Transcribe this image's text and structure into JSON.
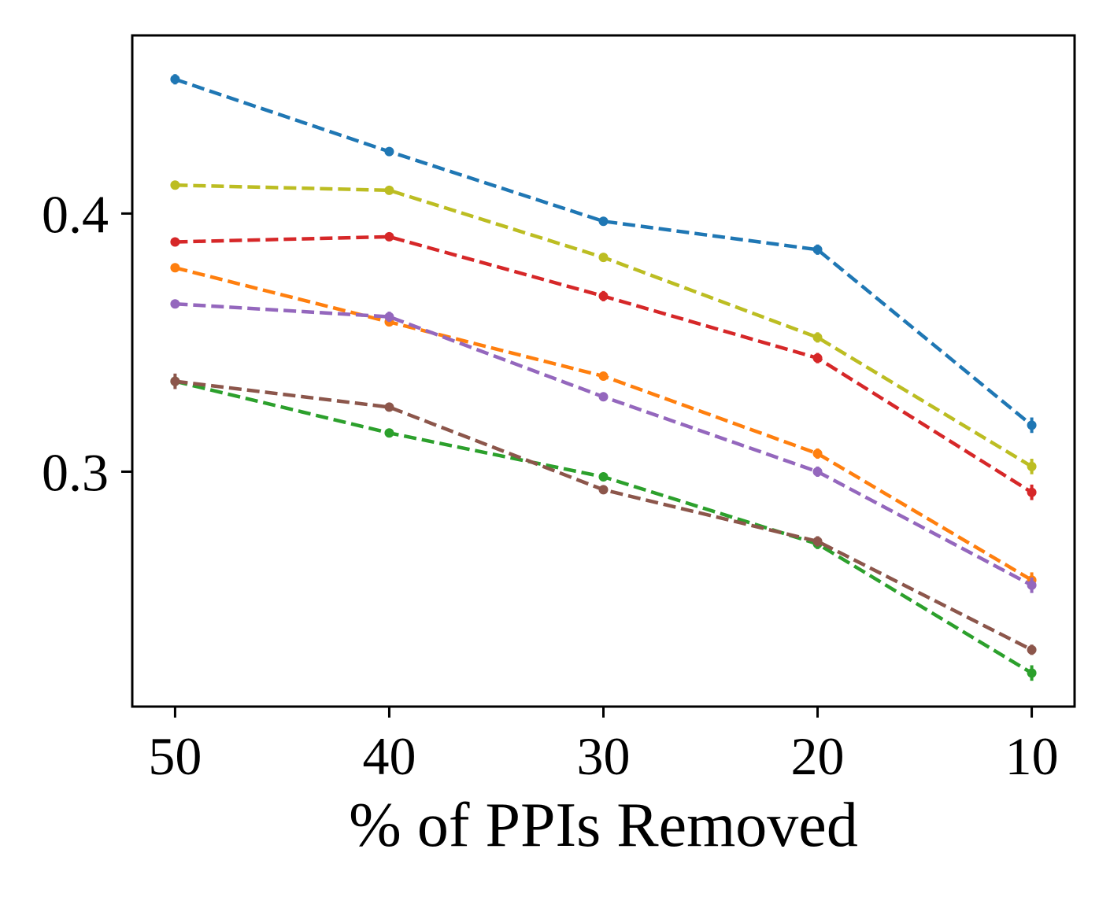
{
  "chart_data": {
    "type": "line",
    "title": "",
    "xlabel": "% of PPIs Removed",
    "ylabel": "",
    "x": [
      50,
      40,
      30,
      20,
      10
    ],
    "xticks": [
      "50",
      "40",
      "30",
      "20",
      "10"
    ],
    "x_inverted": true,
    "xlim": [
      52,
      8
    ],
    "yticks": [
      "0.4",
      "0.3"
    ],
    "ylim": [
      0.209,
      0.469
    ],
    "grid": false,
    "legend": "none",
    "line_style": "dashed",
    "series": [
      {
        "color": "#1f77b4",
        "values": [
          0.452,
          0.424,
          0.397,
          0.386,
          0.318
        ],
        "errors": [
          0.002,
          0.001,
          0.001,
          0.002,
          0.003
        ]
      },
      {
        "color": "#bcbd22",
        "values": [
          0.411,
          0.409,
          0.383,
          0.352,
          0.302
        ],
        "errors": [
          0.001,
          0.001,
          0.001,
          0.002,
          0.003
        ]
      },
      {
        "color": "#d62728",
        "values": [
          0.389,
          0.391,
          0.368,
          0.344,
          0.292
        ],
        "errors": [
          0.001,
          0.001,
          0.002,
          0.002,
          0.003
        ]
      },
      {
        "color": "#ff7f0e",
        "values": [
          0.379,
          0.358,
          0.337,
          0.307,
          0.258
        ],
        "errors": [
          0.001,
          0.001,
          0.001,
          0.002,
          0.003
        ]
      },
      {
        "color": "#9467bd",
        "values": [
          0.365,
          0.36,
          0.329,
          0.3,
          0.256
        ],
        "errors": [
          0.001,
          0.002,
          0.001,
          0.002,
          0.003
        ]
      },
      {
        "color": "#2ca02c",
        "values": [
          0.335,
          0.315,
          0.298,
          0.272,
          0.222
        ],
        "errors": [
          0.002,
          0.001,
          0.001,
          0.002,
          0.003
        ]
      },
      {
        "color": "#8c564b",
        "values": [
          0.335,
          0.325,
          0.293,
          0.273,
          0.231
        ],
        "errors": [
          0.003,
          0.001,
          0.001,
          0.002,
          0.002
        ]
      }
    ]
  }
}
